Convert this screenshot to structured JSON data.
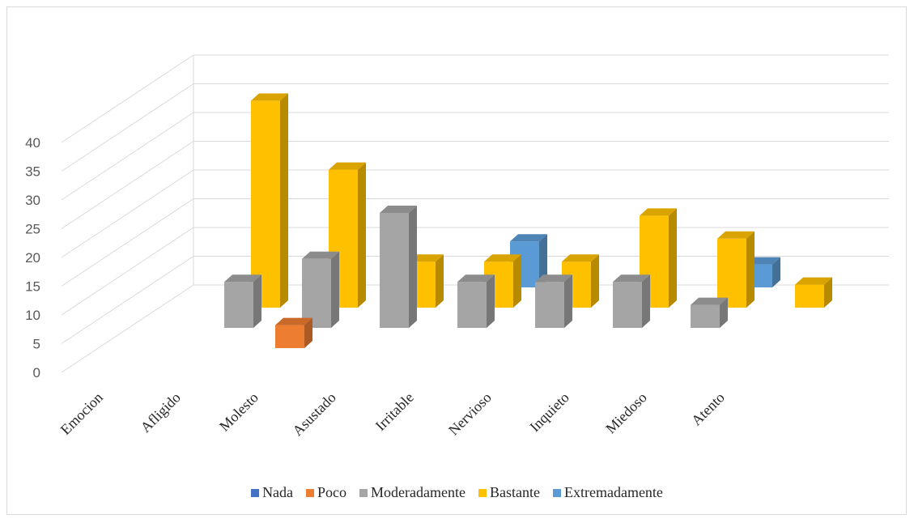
{
  "chart_data": {
    "type": "bar",
    "style": "3d-clustered-column",
    "categories": [
      "Emocion",
      "Afligido",
      "Molesto",
      "Asustado",
      "Irritable",
      "Nervioso",
      "Inquieto",
      "Miedoso",
      "Atento"
    ],
    "series": [
      {
        "name": "Nada",
        "color": "#4472C4",
        "values": [
          null,
          null,
          null,
          null,
          null,
          null,
          null,
          null,
          null
        ]
      },
      {
        "name": "Poco",
        "color": "#ED7D31",
        "values": [
          null,
          null,
          4,
          null,
          null,
          null,
          null,
          null,
          null
        ]
      },
      {
        "name": "Moderadamente",
        "color": "#A5A5A5",
        "values": [
          null,
          null,
          8,
          12,
          20,
          8,
          8,
          8,
          4
        ]
      },
      {
        "name": "Bastante",
        "color": "#FFC000",
        "values": [
          null,
          null,
          36,
          24,
          8,
          8,
          8,
          16,
          12
        ]
      },
      {
        "name": "Extremadamente",
        "color": "#5B9BD5",
        "values": [
          null,
          null,
          null,
          null,
          null,
          8,
          null,
          null,
          4
        ]
      }
    ],
    "extra_bar": {
      "series": "Bastante",
      "value": 4
    },
    "y_ticks": [
      "0",
      "5",
      "10",
      "15",
      "20",
      "25",
      "30",
      "35",
      "40"
    ],
    "ylim": [
      0,
      40
    ],
    "legend_position": "bottom",
    "grid": true
  }
}
